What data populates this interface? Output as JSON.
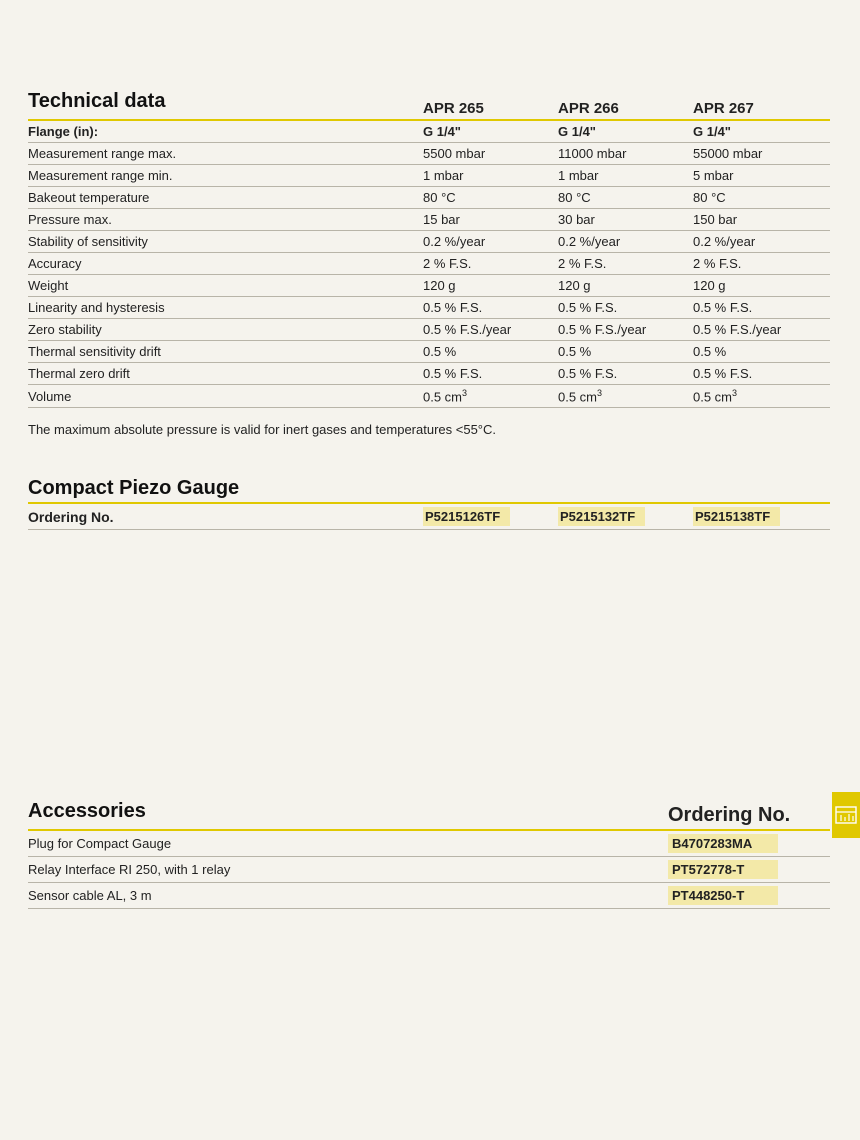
{
  "technical": {
    "title": "Technical data",
    "columns": [
      "APR 265",
      "APR 266",
      "APR 267"
    ],
    "rows": [
      {
        "label": "Flange (in):",
        "bold": true,
        "values": [
          "G 1/4\"",
          "G 1/4\"",
          "G 1/4\""
        ],
        "valbold": true
      },
      {
        "label": "Measurement range max.",
        "values": [
          "5500 mbar",
          "11000 mbar",
          "55000 mbar"
        ]
      },
      {
        "label": "Measurement range min.",
        "values": [
          "1 mbar",
          "1 mbar",
          "5 mbar"
        ]
      },
      {
        "label": "Bakeout temperature",
        "values": [
          "80 °C",
          "80 °C",
          "80 °C"
        ]
      },
      {
        "label": "Pressure max.",
        "values": [
          "15 bar",
          "30 bar",
          "150 bar"
        ]
      },
      {
        "label": "Stability of sensitivity",
        "values": [
          "0.2 %/year",
          "0.2 %/year",
          "0.2 %/year"
        ]
      },
      {
        "label": "Accuracy",
        "values": [
          "2 % F.S.",
          "2 % F.S.",
          "2 % F.S."
        ]
      },
      {
        "label": "Weight",
        "values": [
          "120 g",
          "120 g",
          "120 g"
        ]
      },
      {
        "label": "Linearity and hysteresis",
        "values": [
          "0.5 % F.S.",
          "0.5 % F.S.",
          "0.5 % F.S."
        ]
      },
      {
        "label": "Zero stability",
        "values": [
          "0.5 % F.S./year",
          "0.5 % F.S./year",
          "0.5 % F.S./year"
        ]
      },
      {
        "label": "Thermal sensitivity drift",
        "values": [
          "0.5 %",
          "0.5 %",
          "0.5 %"
        ]
      },
      {
        "label": "Thermal zero drift",
        "values": [
          "0.5 % F.S.",
          "0.5 % F.S.",
          "0.5 % F.S."
        ]
      },
      {
        "label": "Volume",
        "values": [
          "0.5 cm³",
          "0.5 cm³",
          "0.5 cm³"
        ],
        "sup": true
      }
    ],
    "footnote": "The maximum absolute pressure is valid for inert gases and temperatures <55°C."
  },
  "piezo": {
    "title": "Compact Piezo Gauge",
    "ordering_label": "Ordering No.",
    "codes": [
      "P5215126TF",
      "P5215132TF",
      "P5215138TF"
    ]
  },
  "accessories": {
    "title": "Accessories",
    "ordering_title": "Ordering No.",
    "rows": [
      {
        "label": "Plug for Compact Gauge",
        "code": "B4707283MA"
      },
      {
        "label": "Relay Interface RI 250, with 1 relay",
        "code": "PT572778-T"
      },
      {
        "label": "Sensor cable AL, 3 m",
        "code": "PT448250-T"
      }
    ]
  },
  "colors": {
    "rule_yellow": "#e0c800",
    "highlight_yellow": "#f3e9a8",
    "row_border": "#b8b4a8",
    "page_bg": "#f5f3ed"
  }
}
